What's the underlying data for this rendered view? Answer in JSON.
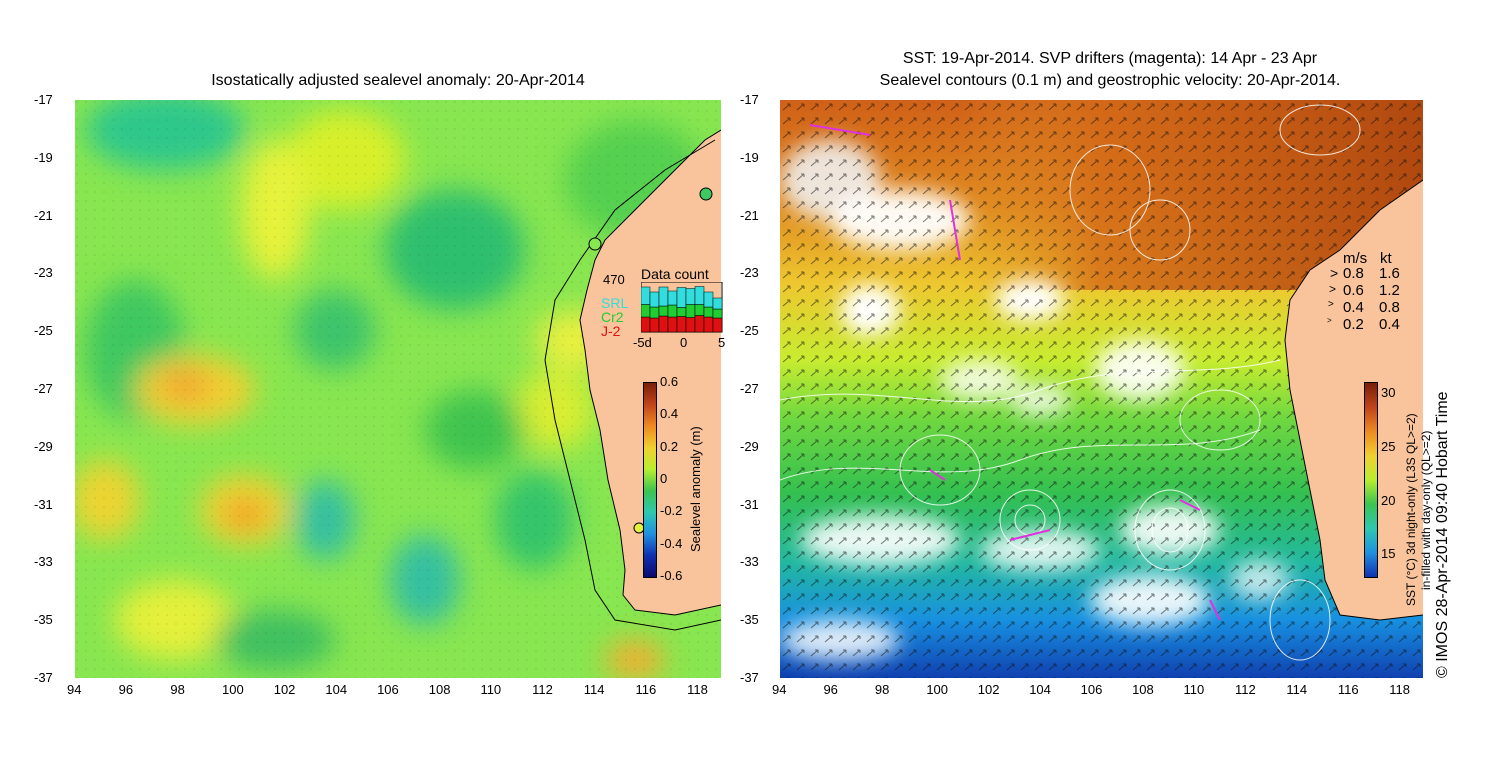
{
  "left_panel": {
    "title": "Isostatically adjusted sealevel anomaly: 20-Apr-2014",
    "colorbar": {
      "label": "Sealevel anomaly (m)",
      "ticks": [
        "0.6",
        "0.4",
        "0.2",
        "0",
        "-0.2",
        "-0.4",
        "-0.6"
      ]
    },
    "inset": {
      "title": "Data count",
      "max_label": "470",
      "legend": [
        {
          "label": "SRL",
          "color": "#33dddd"
        },
        {
          "label": "Cr2",
          "color": "#22cc33"
        },
        {
          "label": "J-2",
          "color": "#dd1111"
        }
      ],
      "x_ticks": [
        "-5d",
        "0",
        "5"
      ],
      "bars": [
        {
          "j2": 0.3,
          "cr2": 0.25,
          "srl": 0.35
        },
        {
          "j2": 0.28,
          "cr2": 0.22,
          "srl": 0.3
        },
        {
          "j2": 0.32,
          "cr2": 0.2,
          "srl": 0.38
        },
        {
          "j2": 0.3,
          "cr2": 0.24,
          "srl": 0.28
        },
        {
          "j2": 0.31,
          "cr2": 0.18,
          "srl": 0.4
        },
        {
          "j2": 0.29,
          "cr2": 0.26,
          "srl": 0.32
        },
        {
          "j2": 0.33,
          "cr2": 0.22,
          "srl": 0.36
        },
        {
          "j2": 0.3,
          "cr2": 0.2,
          "srl": 0.3
        },
        {
          "j2": 0.28,
          "cr2": 0.18,
          "srl": 0.22
        }
      ]
    }
  },
  "right_panel": {
    "title_line1": "SST: 19-Apr-2014. SVP drifters (magenta): 14 Apr - 23 Apr",
    "title_line2": "Sealevel contours (0.1 m) and geostrophic velocity: 20-Apr-2014.",
    "speed_legend": {
      "header_ms": "m/s",
      "header_kt": "kt",
      "rows": [
        {
          "ms": "0.8",
          "kt": "1.6"
        },
        {
          "ms": "0.6",
          "kt": "1.2"
        },
        {
          "ms": "0.4",
          "kt": "0.8"
        },
        {
          "ms": "0.2",
          "kt": "0.4"
        }
      ]
    },
    "colorbar": {
      "label_line1": "SST (°C) 3d night-only (L3S QL>=2)",
      "label_line2": "in-filled with day-only (QL>=2)",
      "ticks": [
        "30",
        "25",
        "20",
        "15"
      ]
    },
    "credit": "© IMOS 28-Apr-2014 09:40 Hobart Time"
  },
  "axes": {
    "lat_labels": [
      "-17",
      "-19",
      "-21",
      "-23",
      "-25",
      "-27",
      "-29",
      "-31",
      "-33",
      "-35",
      "-37"
    ],
    "lon_labels": [
      "94",
      "96",
      "98",
      "100",
      "102",
      "104",
      "106",
      "108",
      "110",
      "112",
      "114",
      "116",
      "118"
    ]
  },
  "colors": {
    "land": "#f9c49b",
    "slv_mid": "#7ee04a",
    "sst_warm": "#c8561a"
  }
}
